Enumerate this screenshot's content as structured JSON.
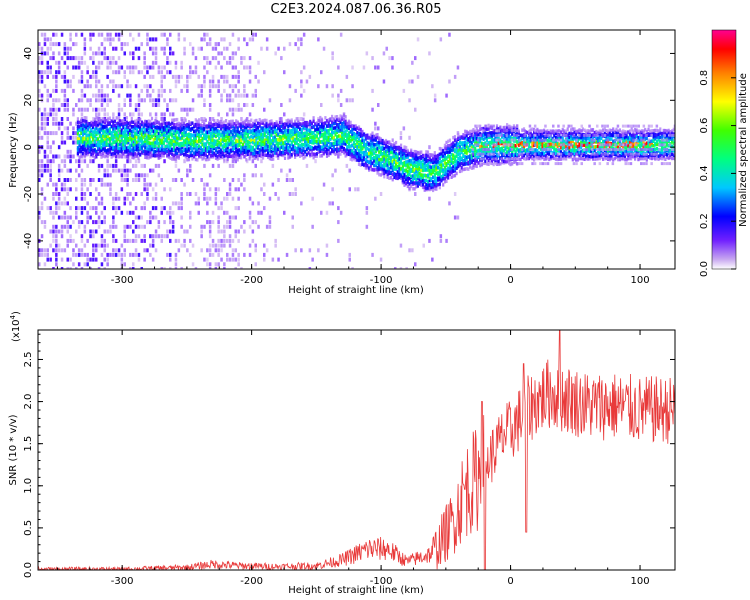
{
  "title": "C2E3.2024.087.06.36.R05",
  "chart_data": [
    {
      "type": "heatmap",
      "xlabel": "Height of straight line (km)",
      "ylabel": "Frequency (Hz)",
      "xlim": [
        -365,
        127
      ],
      "ylim": [
        -52,
        50
      ],
      "x_ticks": [
        -300,
        -200,
        -100,
        0,
        100
      ],
      "y_ticks": [
        -40,
        -20,
        0,
        20,
        40
      ],
      "colorbar": {
        "label": "Normalized spectral amplitude",
        "range": [
          0,
          1
        ],
        "ticks": [
          0.0,
          0.2,
          0.4,
          0.6,
          0.8
        ],
        "tick_labels": [
          "0.0",
          "0.2",
          "0.4",
          "0.6",
          "0.8"
        ]
      },
      "ridge_path": [
        [
          -330,
          4
        ],
        [
          -300,
          4
        ],
        [
          -250,
          3
        ],
        [
          -200,
          3
        ],
        [
          -150,
          4
        ],
        [
          -130,
          5
        ],
        [
          -110,
          -2
        ],
        [
          -90,
          -6
        ],
        [
          -80,
          -9
        ],
        [
          -60,
          -11
        ],
        [
          -40,
          -2
        ],
        [
          -20,
          1
        ],
        [
          0,
          1
        ],
        [
          50,
          1
        ],
        [
          100,
          1
        ],
        [
          127,
          1
        ]
      ]
    },
    {
      "type": "line",
      "xlabel": "Height of straight line (km)",
      "ylabel": "SNR (10 * v/v)",
      "y_scale_label": "(x10",
      "y_scale_exponent": "4",
      "y_scale_suffix": ")",
      "xlim": [
        -365,
        127
      ],
      "ylim": [
        0,
        2.85
      ],
      "x_ticks": [
        -300,
        -200,
        -100,
        0,
        100
      ],
      "y_ticks": [
        0.0,
        0.5,
        1.0,
        1.5,
        2.0,
        2.5
      ],
      "y_tick_labels": [
        "0.0",
        "0.5",
        "1.0",
        "1.5",
        "2.0",
        "2.5"
      ],
      "line_color": "#e83a3a",
      "series": [
        {
          "points": [
            [
              -365,
              0.01
            ],
            [
              -300,
              0.01
            ],
            [
              -250,
              0.03
            ],
            [
              -230,
              0.07
            ],
            [
              -210,
              0.05
            ],
            [
              -180,
              0.04
            ],
            [
              -150,
              0.05
            ],
            [
              -130,
              0.12
            ],
            [
              -110,
              0.25
            ],
            [
              -95,
              0.25
            ],
            [
              -80,
              0.1
            ],
            [
              -60,
              0.2
            ],
            [
              -45,
              0.55
            ],
            [
              -35,
              0.95
            ],
            [
              -25,
              1.1
            ],
            [
              -15,
              1.35
            ],
            [
              -5,
              1.6
            ],
            [
              0,
              1.65
            ],
            [
              10,
              1.85
            ],
            [
              20,
              2.0
            ],
            [
              30,
              2.1
            ],
            [
              40,
              2.05
            ],
            [
              60,
              1.95
            ],
            [
              80,
              1.95
            ],
            [
              100,
              1.9
            ],
            [
              127,
              1.9
            ]
          ],
          "spikes": [
            [
              -22,
              2.0
            ],
            [
              -20,
              0.0
            ],
            [
              10,
              2.45
            ],
            [
              12,
              0.45
            ],
            [
              38,
              2.85
            ]
          ]
        }
      ]
    }
  ]
}
